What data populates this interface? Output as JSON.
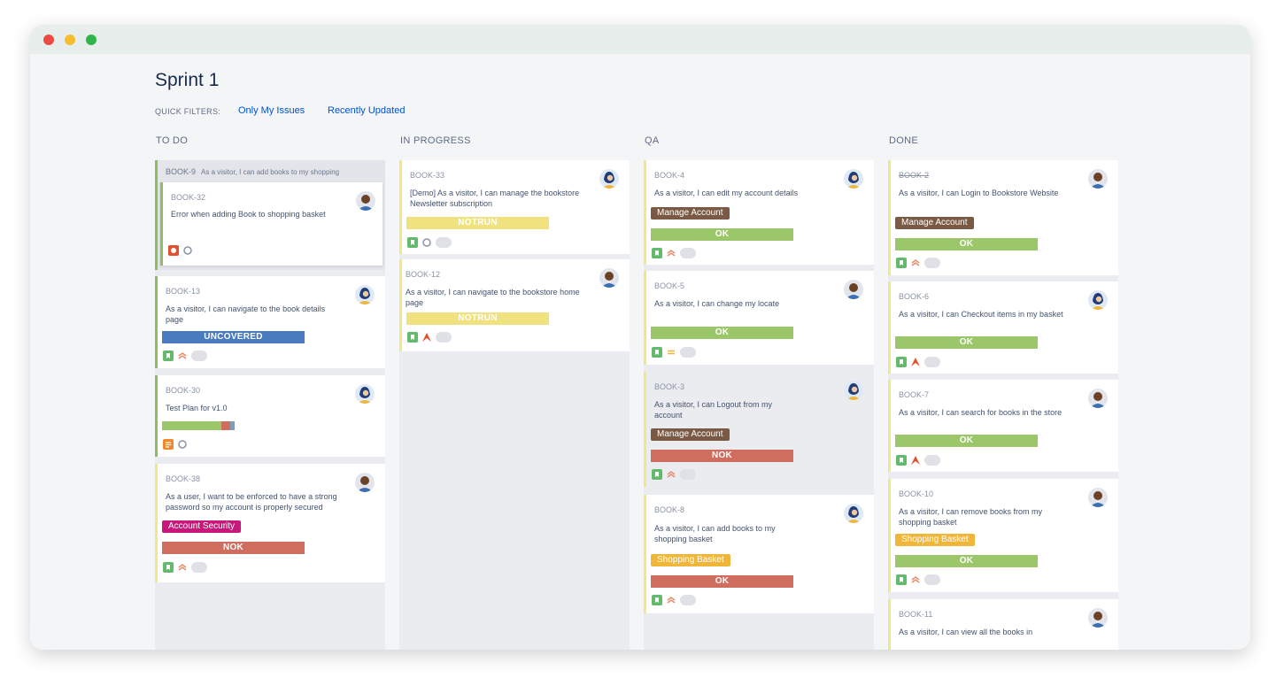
{
  "sprint_title": "Sprint 1",
  "quick_filters": {
    "label": "QUICK FILTERS:",
    "filters": [
      "Only My Issues",
      "Recently Updated"
    ]
  },
  "columns": [
    {
      "title": "TO DO",
      "epic": {
        "key": "BOOK-9",
        "summary": "As a visitor, I can add books to my shopping"
      },
      "cards": [
        {
          "key": "BOOK-32",
          "summary": "Error when adding Book to shopping basket"
        },
        {
          "key": "BOOK-13",
          "summary": "As a visitor, I can navigate to the book details page",
          "status": "UNCOVERED"
        },
        {
          "key": "BOOK-30",
          "summary": "Test Plan for v1.0",
          "progress": {
            "passed": 0.82,
            "failed": 0.12,
            "other": 0.06
          }
        },
        {
          "key": "BOOK-38",
          "summary": "As a user, I want to be enforced to have a strong password so my account is properly secured",
          "tag": "Account Security",
          "status": "NOK"
        }
      ]
    },
    {
      "title": "IN PROGRESS",
      "cards": [
        {
          "key": "BOOK-33",
          "summary": "[Demo] As a visitor, I can manage the bookstore Newsletter subscription",
          "status": "NOTRUN"
        },
        {
          "key": "BOOK-12",
          "summary": "As a visitor, I can navigate to the bookstore home page",
          "status": "NOTRUN"
        }
      ]
    },
    {
      "title": "QA",
      "cards": [
        {
          "key": "BOOK-4",
          "summary": "As a visitor, I can edit my account details",
          "tag": "Manage Account",
          "status": "OK"
        },
        {
          "key": "BOOK-5",
          "summary": "As a visitor, I can change my locate",
          "status": "OK"
        },
        {
          "key": "BOOK-3",
          "summary": "As a visitor, I can Logout from my account",
          "tag": "Manage Account",
          "status": "NOK"
        },
        {
          "key": "BOOK-8",
          "summary": "As a visitor, I can add books to my shopping basket",
          "tag": "Shopping Basket",
          "status": "OK"
        }
      ]
    },
    {
      "title": "DONE",
      "cards": [
        {
          "key": "BOOK-2",
          "summary": "As a visitor, I can Login to Bookstore Website",
          "tag": "Manage Account",
          "status": "OK"
        },
        {
          "key": "BOOK-6",
          "summary": "As a visitor, I can Checkout items in my basket",
          "status": "OK"
        },
        {
          "key": "BOOK-7",
          "summary": "As a visitor, I can search for books in the store",
          "status": "OK"
        },
        {
          "key": "BOOK-10",
          "summary": "As a visitor, I can remove books from my shopping basket",
          "tag": "Shopping Basket",
          "status": "OK"
        },
        {
          "key": "BOOK-11",
          "summary": "As a visitor, I can view all the books in"
        }
      ]
    }
  ],
  "colors": {
    "ok": "#9cc66a",
    "nok": "#cf6e5f",
    "notrun": "#efe27f",
    "uncovered": "#4a7bbf",
    "manage_account": "#7a5a45",
    "account_security": "#c8187b",
    "shopping_basket": "#f0b63a",
    "story": "#63ba6c",
    "bug": "#e2502f",
    "test_plan": "#f18a2a",
    "link": "#0052cc"
  },
  "icons": [
    "story-icon",
    "bug-icon",
    "test-plan-icon",
    "priority-medium-icon",
    "priority-high-icon",
    "priority-major-icon",
    "priority-minor-icon",
    "avatar-icon"
  ]
}
